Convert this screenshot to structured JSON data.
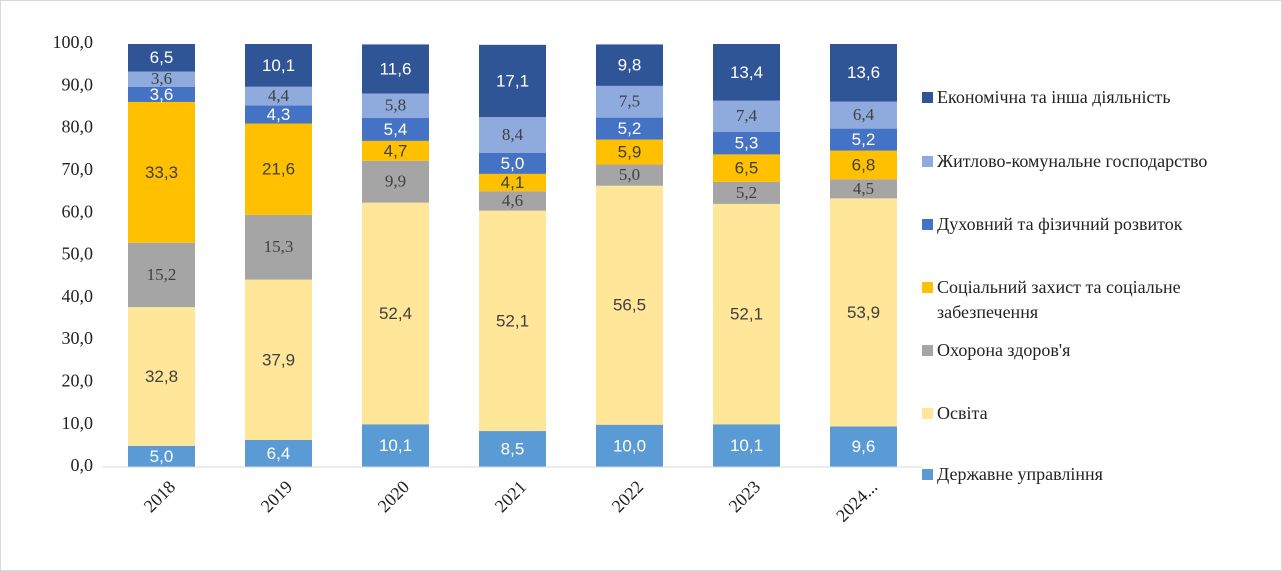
{
  "chart_data": {
    "type": "stacked_bar",
    "categories": [
      "2018",
      "2019",
      "2020",
      "2021",
      "2022",
      "2023",
      "2024..."
    ],
    "series": [
      {
        "name": "Державне управління",
        "color": "#5b9bd5",
        "values": [
          5.0,
          6.4,
          10.1,
          8.5,
          10.0,
          10.1,
          9.6
        ],
        "value_labels": [
          "5,0",
          "6,4",
          "10,1",
          "8,5",
          "10,0",
          "10,1",
          "9,6"
        ]
      },
      {
        "name": "Освіта",
        "color": "#ffe699",
        "values": [
          32.8,
          37.9,
          52.4,
          52.1,
          56.5,
          52.1,
          53.9
        ],
        "value_labels": [
          "32,8",
          "37,9",
          "52,4",
          "52,1",
          "56,5",
          "52,1",
          "53,9"
        ]
      },
      {
        "name": "Охорона здоров'я",
        "color": "#a5a5a5",
        "values": [
          15.2,
          15.3,
          9.9,
          4.6,
          5.0,
          5.2,
          4.5
        ],
        "value_labels": [
          "15,2",
          "15,3",
          "9,9",
          "4,6",
          "5,0",
          "5,2",
          "4,5"
        ]
      },
      {
        "name": "Соціальний захист та соціальне забезпечення",
        "color": "#ffc000",
        "values": [
          33.3,
          21.6,
          4.7,
          4.1,
          5.9,
          6.5,
          6.8
        ],
        "value_labels": [
          "33,3",
          "21,6",
          "4,7",
          "4,1",
          "5,9",
          "6,5",
          "6,8"
        ]
      },
      {
        "name": "Духовний та фізичний розвиток",
        "color": "#4472c4",
        "values": [
          3.6,
          4.3,
          5.4,
          5.0,
          5.2,
          5.3,
          5.2
        ],
        "value_labels": [
          "3,6",
          "4,3",
          "5,4",
          "5,0",
          "5,2",
          "5,3",
          "5,2"
        ]
      },
      {
        "name": "Житлово-комунальне господарство",
        "color": "#8faadc",
        "values": [
          3.6,
          4.4,
          5.8,
          8.4,
          7.5,
          7.4,
          6.4
        ],
        "value_labels": [
          "3,6",
          "4,4",
          "5,8",
          "8,4",
          "7,5",
          "7,4",
          "6,4"
        ]
      },
      {
        "name": "Економічна та інша діяльність",
        "color": "#2f5597",
        "values": [
          6.5,
          10.1,
          11.6,
          17.1,
          9.8,
          13.4,
          13.6
        ],
        "value_labels": [
          "6,5",
          "10,1",
          "11,6",
          "17,1",
          "9,8",
          "13,4",
          "13,6"
        ]
      }
    ],
    "ylim": [
      0,
      100
    ],
    "yticks": [
      {
        "value": 0,
        "label": "0,0"
      },
      {
        "value": 10,
        "label": "10,0"
      },
      {
        "value": 20,
        "label": "20,0"
      },
      {
        "value": 30,
        "label": "30,0"
      },
      {
        "value": 40,
        "label": "40,0"
      },
      {
        "value": 50,
        "label": "50,0"
      },
      {
        "value": 60,
        "label": "60,0"
      },
      {
        "value": 70,
        "label": "70,0"
      },
      {
        "value": 80,
        "label": "80,0"
      },
      {
        "value": 90,
        "label": "90,0"
      },
      {
        "value": 100,
        "label": "100,0"
      }
    ],
    "legend": "right"
  }
}
